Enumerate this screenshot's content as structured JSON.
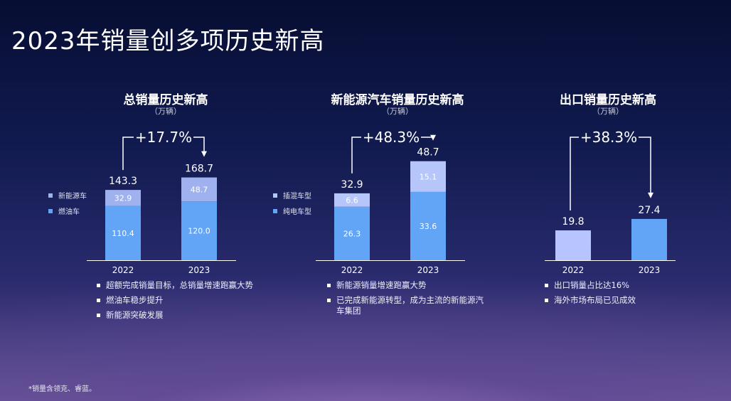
{
  "page": {
    "title": "2023年销量创多项历史新高",
    "footnote": "*销量含领克、睿蓝。"
  },
  "colors": {
    "ice": "#62a4f5",
    "nev": "#9fb2ef",
    "bev": "#62a4f5",
    "phev": "#b7c6fa",
    "export2022": "#b8c4ff",
    "export2023": "#62a4f5"
  },
  "panels": [
    {
      "title": "总销量历史新高",
      "unit": "（万辆）",
      "legend": [
        {
          "label": "新能源车",
          "color": "#9fb2ef"
        },
        {
          "label": "燃油车",
          "color": "#62a4f5"
        }
      ],
      "notes": [
        "超额完成销量目标，总销量增速跑赢大势",
        "燃油车稳步提升",
        "新能源突破发展"
      ]
    },
    {
      "title": "新能源汽车销量历史新高",
      "unit": "（万辆）",
      "legend": [
        {
          "label": "插混车型",
          "color": "#b7c6fa"
        },
        {
          "label": "纯电车型",
          "color": "#62a4f5"
        }
      ],
      "notes": [
        "新能源销量增速跑赢大势",
        "已完成新能源转型，成为主流的新能源汽车集团"
      ]
    },
    {
      "title": "出口销量历史新高",
      "unit": "（万辆）",
      "legend": [],
      "notes": [
        "出口销量占比达16%",
        "海外市场布局已见成效"
      ]
    }
  ],
  "chart_data": [
    {
      "type": "bar",
      "stacked": true,
      "title": "总销量历史新高",
      "subtitle": "（万辆）",
      "categories": [
        "2022",
        "2023"
      ],
      "series": [
        {
          "name": "燃油车",
          "values": [
            110.4,
            120.0
          ],
          "color": "#62a4f5"
        },
        {
          "name": "新能源车",
          "values": [
            32.9,
            48.7
          ],
          "color": "#9fb2ef"
        }
      ],
      "totals": [
        "143.3",
        "168.7"
      ],
      "growth": "+17.7%",
      "value_labels": [
        [
          "110.4",
          "120.0"
        ],
        [
          "32.9",
          "48.7"
        ]
      ],
      "ylim": [
        0,
        175
      ],
      "grid": false,
      "legend_position": "left"
    },
    {
      "type": "bar",
      "stacked": true,
      "title": "新能源汽车销量历史新高",
      "subtitle": "（万辆）",
      "categories": [
        "2022",
        "2023"
      ],
      "series": [
        {
          "name": "纯电车型",
          "values": [
            26.3,
            33.6
          ],
          "color": "#62a4f5"
        },
        {
          "name": "插混车型",
          "values": [
            6.6,
            15.1
          ],
          "color": "#b7c6fa"
        }
      ],
      "totals": [
        "32.9",
        "48.7"
      ],
      "growth": "+48.3%",
      "value_labels": [
        [
          "26.3",
          "33.6"
        ],
        [
          "6.6",
          "15.1"
        ]
      ],
      "ylim": [
        0,
        50
      ],
      "grid": false,
      "legend_position": "left"
    },
    {
      "type": "bar",
      "stacked": false,
      "title": "出口销量历史新高",
      "subtitle": "（万辆）",
      "categories": [
        "2022",
        "2023"
      ],
      "values": [
        19.8,
        27.4
      ],
      "bar_colors": [
        "#b8c4ff",
        "#62a4f5"
      ],
      "totals": [
        "19.8",
        "27.4"
      ],
      "growth": "+38.3%",
      "ylim": [
        0,
        45
      ],
      "grid": false
    }
  ]
}
